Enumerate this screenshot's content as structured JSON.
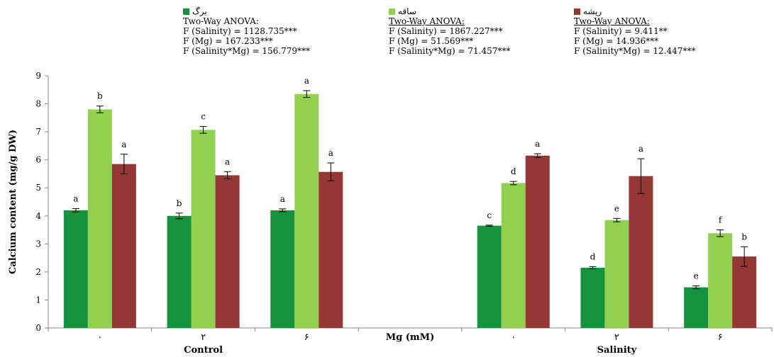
{
  "chart_data": {
    "type": "bar",
    "ylabel": "Calcium content (mg/g DW)",
    "xlabel": "Mg (mM)",
    "ylim": [
      0,
      9
    ],
    "yticks": [
      0,
      1,
      2,
      3,
      4,
      5,
      6,
      7,
      8,
      9
    ],
    "groups": [
      {
        "label": "Control",
        "categories": [
          "۰",
          "۲",
          "۶"
        ]
      },
      {
        "label": "Salinity",
        "categories": [
          "۰",
          "۲",
          "۶"
        ]
      }
    ],
    "series": [
      {
        "name": "برگ",
        "color": "#15923c",
        "values": [
          4.2,
          4.0,
          4.2,
          3.65,
          2.15,
          1.45
        ],
        "errors": [
          0.06,
          0.1,
          0.05,
          0.02,
          0.04,
          0.05
        ],
        "letters": [
          "a",
          "b",
          "a",
          "c",
          "d",
          "e"
        ],
        "anova": {
          "title": "Two-Way ANOVA:",
          "lines": [
            "F (Salinity) = 1128.735***",
            "F (Mg) = 167.233***",
            "F (Salinity*Mg) = 156.779***"
          ]
        }
      },
      {
        "name": "ساقه",
        "color": "#92d050",
        "values": [
          7.8,
          7.07,
          8.35,
          5.17,
          3.85,
          3.38
        ],
        "errors": [
          0.12,
          0.12,
          0.12,
          0.06,
          0.06,
          0.12
        ],
        "letters": [
          "b",
          "c",
          "a",
          "d",
          "e",
          "f"
        ],
        "anova": {
          "title": "Two-Way ANOVA:",
          "lines": [
            "F (Salinity) = 1867.227***",
            "F (Mg) = 51.569***",
            "F (Salinity*Mg) = 71.457***"
          ]
        }
      },
      {
        "name": "ریشه",
        "color": "#953735",
        "values": [
          5.85,
          5.45,
          5.57,
          6.15,
          5.42,
          2.55
        ],
        "errors": [
          0.35,
          0.13,
          0.32,
          0.07,
          0.62,
          0.35
        ],
        "letters": [
          "a",
          "a",
          "a",
          "a",
          "a",
          "b"
        ],
        "anova": {
          "title": "Two-Way ANOVA:",
          "lines": [
            "F (Salinity) = 9.411**",
            "F (Mg) = 14.936***",
            "F (Salinity*Mg) = 12.447***"
          ]
        }
      }
    ],
    "grid": false,
    "legend_position": "top"
  }
}
